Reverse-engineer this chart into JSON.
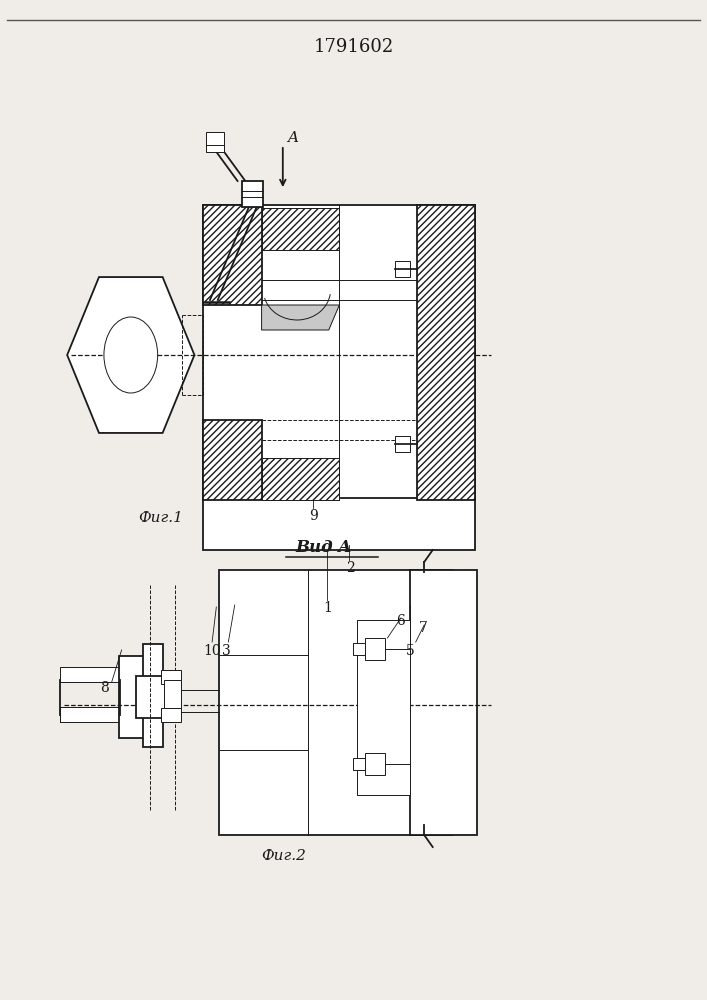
{
  "title": "1791602",
  "title_fontsize": 13,
  "bg_color": "#f0ede8",
  "line_color": "#1a1a1a",
  "fig1_label": "Фиг.1",
  "fig2_label": "Фиг.2",
  "vida_label": "Вид A",
  "label_A": "A"
}
